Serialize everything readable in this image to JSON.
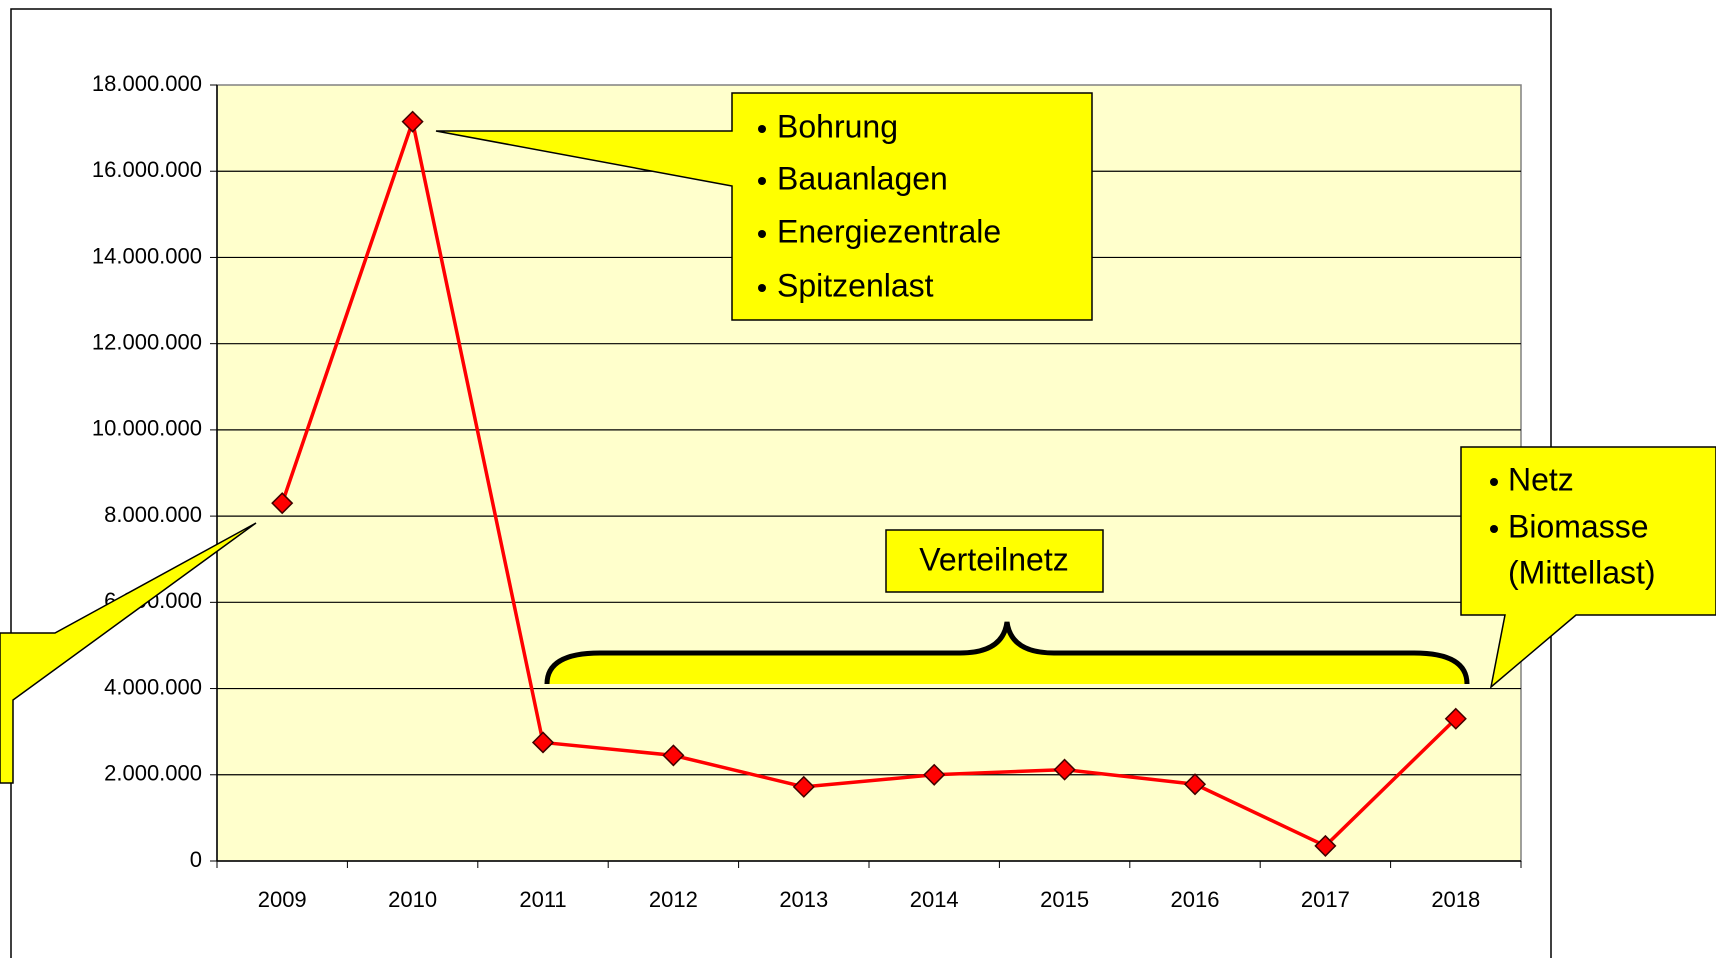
{
  "chart_data": {
    "type": "line",
    "categories": [
      "2009",
      "2010",
      "2011",
      "2012",
      "2013",
      "2014",
      "2015",
      "2016",
      "2017",
      "2018"
    ],
    "series": [
      {
        "color": "#ff0000",
        "values": [
          8300000,
          17150000,
          2750000,
          2450000,
          1720000,
          2000000,
          2120000,
          1780000,
          350000,
          3300000
        ]
      }
    ],
    "ylim": [
      0,
      18000000
    ],
    "yticks": [
      0,
      {
        "value": 2000000,
        "label": "2.000.000"
      },
      {
        "value": 4000000,
        "label": "4.000.000"
      },
      {
        "value": 6000000,
        "label": "6.000.000"
      },
      {
        "value": 8000000,
        "label": "8.000.000"
      },
      {
        "value": 10000000,
        "label": "10.000.000"
      },
      {
        "value": 12000000,
        "label": "12.000.000"
      },
      {
        "value": 14000000,
        "label": "14.000.000"
      },
      {
        "value": 16000000,
        "label": "16.000.000"
      },
      {
        "value": 18000000,
        "label": "18.000.000"
      }
    ],
    "grid": true,
    "annotations": [
      {
        "lines": [
          "Bohrung",
          "Bauanlagen",
          "Energiezentrale",
          "Spitzenlast"
        ]
      },
      {
        "lines": [
          "Verteilnetz"
        ]
      },
      {
        "lines": [
          "Netz",
          "Biomasse",
          "(Mittellast)"
        ]
      }
    ]
  }
}
